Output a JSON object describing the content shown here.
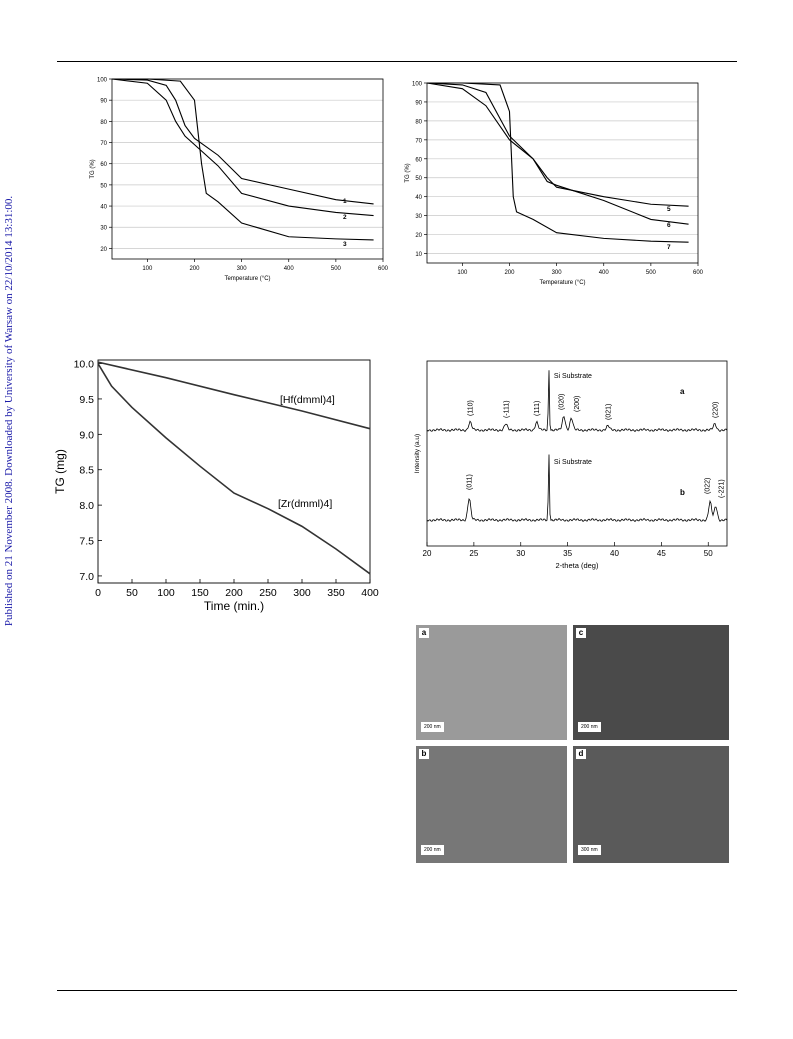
{
  "sidebar": {
    "text": "Published on 21 November 2008. Downloaded by University of Warsaw on 22/10/2014 13:31:00."
  },
  "chart_data": [
    {
      "type": "line",
      "xlabel": "Temperature  (°C)",
      "ylabel": "TG (%)",
      "xlim": [
        25,
        600
      ],
      "ylim": [
        15,
        100
      ],
      "xticks": [
        "100",
        "200",
        "300",
        "400",
        "500",
        "600"
      ],
      "yticks": [
        "20",
        "30",
        "40",
        "50",
        "60",
        "70",
        "80",
        "90",
        "100"
      ],
      "grid": "horizontal",
      "series": [
        {
          "name": "1",
          "x": [
            25,
            100,
            140,
            160,
            180,
            200,
            250,
            300,
            400,
            500,
            580
          ],
          "y": [
            100,
            99.5,
            97,
            90,
            78,
            72,
            64,
            53,
            48,
            43,
            41
          ]
        },
        {
          "name": "2",
          "x": [
            25,
            100,
            140,
            160,
            180,
            200,
            250,
            300,
            400,
            500,
            580
          ],
          "y": [
            100,
            98,
            90,
            80,
            73,
            69,
            59,
            46,
            40,
            37,
            35.5
          ]
        },
        {
          "name": "3",
          "x": [
            25,
            100,
            170,
            200,
            215,
            225,
            250,
            300,
            400,
            500,
            580
          ],
          "y": [
            100,
            100,
            99,
            90,
            60,
            46,
            42,
            32,
            25.5,
            24.5,
            24
          ]
        }
      ]
    },
    {
      "type": "line",
      "xlabel": "Temperature  (°C)",
      "ylabel": "TG (%)",
      "xlim": [
        25,
        600
      ],
      "ylim": [
        5,
        100
      ],
      "xticks": [
        "100",
        "200",
        "300",
        "400",
        "500",
        "600"
      ],
      "yticks": [
        "10",
        "20",
        "30",
        "40",
        "50",
        "60",
        "70",
        "80",
        "90",
        "100"
      ],
      "grid": "horizontal",
      "series": [
        {
          "name": "5",
          "x": [
            25,
            100,
            150,
            200,
            250,
            280,
            300,
            400,
            500,
            580
          ],
          "y": [
            100,
            97,
            88,
            70,
            60,
            50,
            45,
            40,
            36,
            35
          ]
        },
        {
          "name": "6",
          "x": [
            25,
            100,
            150,
            200,
            250,
            280,
            300,
            400,
            500,
            580
          ],
          "y": [
            100,
            99,
            95,
            72,
            60,
            48,
            46,
            38,
            28,
            25.5
          ]
        },
        {
          "name": "7",
          "x": [
            25,
            100,
            180,
            200,
            208,
            215,
            250,
            300,
            400,
            500,
            580
          ],
          "y": [
            100,
            100,
            99,
            85,
            40,
            32,
            28,
            21,
            18,
            16.5,
            16
          ]
        }
      ]
    },
    {
      "type": "line",
      "xlabel": "Time (min.)",
      "ylabel": "TG (mg)",
      "xlim": [
        0,
        400
      ],
      "ylim": [
        6.9,
        10.05
      ],
      "xticks": [
        "0",
        "50",
        "100",
        "150",
        "200",
        "250",
        "300",
        "350",
        "400"
      ],
      "yticks": [
        "7.0",
        "7.5",
        "8.0",
        "8.5",
        "9.0",
        "9.5",
        "10.0"
      ],
      "series": [
        {
          "name": "[Hf(dmml)4]",
          "x": [
            0,
            100,
            200,
            300,
            400
          ],
          "y": [
            10.02,
            9.8,
            9.56,
            9.33,
            9.08
          ]
        },
        {
          "name": "[Zr(dmml)4]",
          "x": [
            0,
            20,
            50,
            100,
            150,
            200,
            250,
            300,
            350,
            400
          ],
          "y": [
            10.0,
            9.68,
            9.38,
            8.95,
            8.55,
            8.17,
            7.95,
            7.7,
            7.38,
            7.03
          ]
        }
      ]
    },
    {
      "type": "line",
      "xlabel": "2-theta (deg)",
      "ylabel": "Intensity (a.u)",
      "xlim": [
        20,
        52
      ],
      "xticks": [
        "20",
        "25",
        "30",
        "35",
        "40",
        "45",
        "50"
      ],
      "annotations": {
        "a": {
          "label": "a",
          "substrate": "Si Substrate",
          "peaks": [
            {
              "x": 24.6,
              "label": "(110)"
            },
            {
              "x": 28.4,
              "label": "(-111)"
            },
            {
              "x": 31.7,
              "label": "(111)"
            },
            {
              "x": 34.6,
              "label": "(020)"
            },
            {
              "x": 35.4,
              "label": "(200)"
            },
            {
              "x": 39.3,
              "label": "(021)"
            },
            {
              "x": 50.7,
              "label": "(220)"
            }
          ]
        },
        "b": {
          "label": "b",
          "substrate": "Si Substrate",
          "peaks": [
            {
              "x": 24.5,
              "label": "(011)"
            },
            {
              "x": 50.2,
              "label": "(022)"
            },
            {
              "x": 50.8,
              "label": "(-221)"
            }
          ]
        }
      }
    }
  ],
  "sem_panels": [
    {
      "label": "a",
      "scale": "200 nm",
      "tone": "#9a9a9a"
    },
    {
      "label": "c",
      "scale": "200 nm",
      "tone": "#4a4a4a"
    },
    {
      "label": "b",
      "scale": "200 nm",
      "tone": "#777"
    },
    {
      "label": "d",
      "scale": "300 nm",
      "tone": "#5a5a5a"
    }
  ]
}
